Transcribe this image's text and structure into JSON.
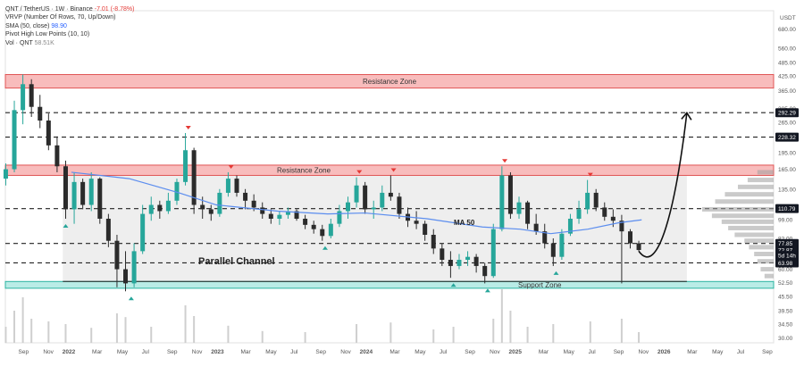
{
  "legend": {
    "symbol_line": "QNT / TetherUS · 1W · Binance",
    "change": "-7.01 (-8.78%)",
    "vrvp": "VRVP (Number Of Rows, 70, Up/Down)",
    "sma_label": "SMA (50, close)",
    "sma_value": "98.90",
    "pivot": "Pivot High Low Points (10, 10)",
    "vol_label": "Vol · QNT",
    "vol_value": "58.51K"
  },
  "chart_data": {
    "type": "candlestick",
    "y_scale": "log",
    "currency": "USDT",
    "ylim": [
      28.5,
      820
    ],
    "y_ticks": [
      "680.00",
      "560.00",
      "485.00",
      "425.00",
      "365.00",
      "305.00",
      "265.00",
      "228.32",
      "195.00",
      "165.00",
      "135.00",
      "110.79",
      "99.00",
      "82.00",
      "77.85",
      "72.87",
      "63.98",
      "60.00",
      "52.50",
      "45.50",
      "39.50",
      "34.50",
      "30.00"
    ],
    "price_badges": [
      {
        "label": "292.29",
        "value": 292.29
      },
      {
        "label": "228.32",
        "value": 228.32
      },
      {
        "label": "110.79",
        "value": 110.79
      },
      {
        "label": "77.85",
        "value": 77.85
      },
      {
        "label": "72.87",
        "value": 72.87
      },
      {
        "label": "5d 14h",
        "value": 69.0
      },
      {
        "label": "63.98",
        "value": 63.98
      }
    ],
    "x_ticks": [
      "Sep",
      "Nov",
      "2022",
      "Mar",
      "May",
      "Jul",
      "Sep",
      "Nov",
      "2023",
      "Mar",
      "May",
      "Jul",
      "Sep",
      "Nov",
      "2024",
      "Mar",
      "May",
      "Jul",
      "Sep",
      "Nov",
      "2025",
      "Mar",
      "May",
      "Jul",
      "Sep",
      "Nov",
      "2026",
      "Mar",
      "May",
      "Jul",
      "Sep"
    ],
    "x_range": [
      "2021-08-01",
      "2026-09-30"
    ],
    "dashed_levels": [
      292.29,
      228.32,
      110.79,
      77.85,
      63.98
    ],
    "resistance_top": {
      "label": "Resistance Zone",
      "low": 375,
      "high": 430
    },
    "resistance_mid": {
      "label": "Resistance Zone",
      "low": 155,
      "high": 172
    },
    "support_zone": {
      "label": "Support Zone",
      "low": 49.5,
      "high": 53
    },
    "channel": {
      "label": "Parallel Channel",
      "low": 53,
      "high": 165,
      "start": "2021-12-20",
      "end": "2026-03-01"
    },
    "ma_label": "MA 50",
    "candles": [
      {
        "date": "2021-08-02",
        "o": 150,
        "h": 175,
        "l": 140,
        "c": 165
      },
      {
        "date": "2021-08-23",
        "o": 165,
        "h": 330,
        "l": 160,
        "c": 300
      },
      {
        "date": "2021-09-13",
        "o": 300,
        "h": 430,
        "l": 260,
        "c": 390
      },
      {
        "date": "2021-10-04",
        "o": 390,
        "h": 410,
        "l": 280,
        "c": 310
      },
      {
        "date": "2021-10-25",
        "o": 310,
        "h": 350,
        "l": 250,
        "c": 270
      },
      {
        "date": "2021-11-15",
        "o": 270,
        "h": 290,
        "l": 200,
        "c": 210
      },
      {
        "date": "2021-12-06",
        "o": 210,
        "h": 230,
        "l": 160,
        "c": 170
      },
      {
        "date": "2021-12-27",
        "o": 170,
        "h": 180,
        "l": 100,
        "c": 110
      },
      {
        "date": "2022-01-17",
        "o": 110,
        "h": 160,
        "l": 95,
        "c": 145
      },
      {
        "date": "2022-02-07",
        "o": 145,
        "h": 150,
        "l": 110,
        "c": 115
      },
      {
        "date": "2022-02-28",
        "o": 115,
        "h": 160,
        "l": 108,
        "c": 150
      },
      {
        "date": "2022-03-21",
        "o": 150,
        "h": 152,
        "l": 95,
        "c": 100
      },
      {
        "date": "2022-04-11",
        "o": 100,
        "h": 105,
        "l": 75,
        "c": 80
      },
      {
        "date": "2022-05-02",
        "o": 80,
        "h": 85,
        "l": 50,
        "c": 60
      },
      {
        "date": "2022-05-23",
        "o": 60,
        "h": 72,
        "l": 48,
        "c": 52
      },
      {
        "date": "2022-06-13",
        "o": 52,
        "h": 78,
        "l": 50,
        "c": 72
      },
      {
        "date": "2022-07-04",
        "o": 72,
        "h": 115,
        "l": 70,
        "c": 105
      },
      {
        "date": "2022-07-25",
        "o": 105,
        "h": 125,
        "l": 98,
        "c": 115
      },
      {
        "date": "2022-08-15",
        "o": 115,
        "h": 120,
        "l": 100,
        "c": 108
      },
      {
        "date": "2022-09-05",
        "o": 108,
        "h": 130,
        "l": 105,
        "c": 120
      },
      {
        "date": "2022-09-26",
        "o": 120,
        "h": 150,
        "l": 115,
        "c": 145
      },
      {
        "date": "2022-10-17",
        "o": 145,
        "h": 238,
        "l": 140,
        "c": 200
      },
      {
        "date": "2022-11-07",
        "o": 200,
        "h": 205,
        "l": 105,
        "c": 115
      },
      {
        "date": "2022-11-28",
        "o": 115,
        "h": 125,
        "l": 100,
        "c": 110
      },
      {
        "date": "2022-12-19",
        "o": 110,
        "h": 115,
        "l": 98,
        "c": 105
      },
      {
        "date": "2023-01-09",
        "o": 105,
        "h": 135,
        "l": 102,
        "c": 130
      },
      {
        "date": "2023-01-30",
        "o": 130,
        "h": 160,
        "l": 125,
        "c": 150
      },
      {
        "date": "2023-02-20",
        "o": 150,
        "h": 155,
        "l": 125,
        "c": 130
      },
      {
        "date": "2023-03-13",
        "o": 130,
        "h": 135,
        "l": 110,
        "c": 120
      },
      {
        "date": "2023-04-03",
        "o": 120,
        "h": 128,
        "l": 108,
        "c": 112
      },
      {
        "date": "2023-04-24",
        "o": 112,
        "h": 118,
        "l": 100,
        "c": 105
      },
      {
        "date": "2023-05-15",
        "o": 105,
        "h": 110,
        "l": 95,
        "c": 100
      },
      {
        "date": "2023-06-05",
        "o": 100,
        "h": 108,
        "l": 94,
        "c": 104
      },
      {
        "date": "2023-06-26",
        "o": 104,
        "h": 112,
        "l": 100,
        "c": 108
      },
      {
        "date": "2023-07-17",
        "o": 108,
        "h": 110,
        "l": 98,
        "c": 100
      },
      {
        "date": "2023-08-07",
        "o": 100,
        "h": 104,
        "l": 90,
        "c": 94
      },
      {
        "date": "2023-08-28",
        "o": 94,
        "h": 98,
        "l": 86,
        "c": 90
      },
      {
        "date": "2023-09-18",
        "o": 90,
        "h": 94,
        "l": 80,
        "c": 84
      },
      {
        "date": "2023-10-09",
        "o": 84,
        "h": 100,
        "l": 82,
        "c": 95
      },
      {
        "date": "2023-10-30",
        "o": 95,
        "h": 115,
        "l": 92,
        "c": 108
      },
      {
        "date": "2023-11-20",
        "o": 108,
        "h": 125,
        "l": 100,
        "c": 118
      },
      {
        "date": "2023-12-11",
        "o": 118,
        "h": 152,
        "l": 112,
        "c": 140
      },
      {
        "date": "2024-01-01",
        "o": 140,
        "h": 145,
        "l": 105,
        "c": 110
      },
      {
        "date": "2024-01-22",
        "o": 110,
        "h": 120,
        "l": 100,
        "c": 112
      },
      {
        "date": "2024-02-12",
        "o": 112,
        "h": 140,
        "l": 108,
        "c": 130
      },
      {
        "date": "2024-03-04",
        "o": 130,
        "h": 155,
        "l": 120,
        "c": 125
      },
      {
        "date": "2024-03-25",
        "o": 125,
        "h": 130,
        "l": 100,
        "c": 105
      },
      {
        "date": "2024-04-15",
        "o": 105,
        "h": 112,
        "l": 92,
        "c": 98
      },
      {
        "date": "2024-05-06",
        "o": 98,
        "h": 108,
        "l": 90,
        "c": 95
      },
      {
        "date": "2024-05-27",
        "o": 95,
        "h": 98,
        "l": 80,
        "c": 85
      },
      {
        "date": "2024-06-17",
        "o": 85,
        "h": 90,
        "l": 70,
        "c": 74
      },
      {
        "date": "2024-07-08",
        "o": 74,
        "h": 78,
        "l": 62,
        "c": 66
      },
      {
        "date": "2024-07-29",
        "o": 66,
        "h": 72,
        "l": 55,
        "c": 62
      },
      {
        "date": "2024-08-19",
        "o": 62,
        "h": 70,
        "l": 60,
        "c": 66
      },
      {
        "date": "2024-09-09",
        "o": 66,
        "h": 72,
        "l": 62,
        "c": 68
      },
      {
        "date": "2024-09-30",
        "o": 68,
        "h": 70,
        "l": 58,
        "c": 62
      },
      {
        "date": "2024-10-21",
        "o": 62,
        "h": 64,
        "l": 52,
        "c": 56
      },
      {
        "date": "2024-11-11",
        "o": 56,
        "h": 95,
        "l": 55,
        "c": 90
      },
      {
        "date": "2024-12-02",
        "o": 90,
        "h": 170,
        "l": 88,
        "c": 155
      },
      {
        "date": "2024-12-23",
        "o": 155,
        "h": 160,
        "l": 100,
        "c": 105
      },
      {
        "date": "2025-01-13",
        "o": 105,
        "h": 125,
        "l": 100,
        "c": 118
      },
      {
        "date": "2025-02-03",
        "o": 118,
        "h": 120,
        "l": 90,
        "c": 95
      },
      {
        "date": "2025-02-24",
        "o": 95,
        "h": 105,
        "l": 85,
        "c": 88
      },
      {
        "date": "2025-03-17",
        "o": 88,
        "h": 95,
        "l": 74,
        "c": 78
      },
      {
        "date": "2025-04-07",
        "o": 78,
        "h": 82,
        "l": 62,
        "c": 68
      },
      {
        "date": "2025-04-28",
        "o": 68,
        "h": 90,
        "l": 66,
        "c": 86
      },
      {
        "date": "2025-05-19",
        "o": 86,
        "h": 105,
        "l": 84,
        "c": 100
      },
      {
        "date": "2025-06-09",
        "o": 100,
        "h": 120,
        "l": 95,
        "c": 110
      },
      {
        "date": "2025-06-30",
        "o": 110,
        "h": 148,
        "l": 105,
        "c": 130
      },
      {
        "date": "2025-07-21",
        "o": 130,
        "h": 135,
        "l": 108,
        "c": 112
      },
      {
        "date": "2025-08-11",
        "o": 112,
        "h": 118,
        "l": 98,
        "c": 102
      },
      {
        "date": "2025-09-01",
        "o": 102,
        "h": 110,
        "l": 92,
        "c": 98
      },
      {
        "date": "2025-09-22",
        "o": 98,
        "h": 104,
        "l": 52,
        "c": 88
      },
      {
        "date": "2025-10-13",
        "o": 88,
        "h": 90,
        "l": 74,
        "c": 78
      },
      {
        "date": "2025-11-03",
        "o": 78,
        "h": 80,
        "l": 72,
        "c": 72.87
      }
    ],
    "sma50": [
      {
        "date": "2022-01-10",
        "v": 160
      },
      {
        "date": "2022-06-01",
        "v": 150
      },
      {
        "date": "2022-10-01",
        "v": 130
      },
      {
        "date": "2023-01-01",
        "v": 115
      },
      {
        "date": "2023-06-01",
        "v": 108
      },
      {
        "date": "2023-10-01",
        "v": 105
      },
      {
        "date": "2024-01-01",
        "v": 106
      },
      {
        "date": "2024-06-01",
        "v": 100
      },
      {
        "date": "2024-10-15",
        "v": 92
      },
      {
        "date": "2025-01-15",
        "v": 90
      },
      {
        "date": "2025-04-01",
        "v": 86
      },
      {
        "date": "2025-07-01",
        "v": 90
      },
      {
        "date": "2025-09-15",
        "v": 96
      },
      {
        "date": "2025-11-10",
        "v": 98.9
      }
    ],
    "pivot_highs": [
      {
        "date": "2022-10-24",
        "v": 238
      },
      {
        "date": "2023-02-06",
        "v": 160
      },
      {
        "date": "2023-12-18",
        "v": 152
      },
      {
        "date": "2024-03-11",
        "v": 155
      },
      {
        "date": "2024-12-09",
        "v": 170
      },
      {
        "date": "2025-07-07",
        "v": 148
      }
    ],
    "pivot_lows": [
      {
        "date": "2021-12-27",
        "v": 100
      },
      {
        "date": "2022-06-06",
        "v": 48
      },
      {
        "date": "2023-09-25",
        "v": 80
      },
      {
        "date": "2024-08-05",
        "v": 55
      },
      {
        "date": "2024-10-28",
        "v": 52
      },
      {
        "date": "2025-04-14",
        "v": 62
      }
    ],
    "projection": [
      {
        "date": "2025-11-03",
        "v": 72
      },
      {
        "date": "2025-12-20",
        "v": 66
      },
      {
        "date": "2026-02-01",
        "v": 110
      },
      {
        "date": "2026-03-01",
        "v": 292
      }
    ],
    "volume": [
      {
        "date": "2021-08-02",
        "v": 30
      },
      {
        "date": "2021-08-23",
        "v": 60
      },
      {
        "date": "2021-09-13",
        "v": 85
      },
      {
        "date": "2021-10-04",
        "v": 45
      },
      {
        "date": "2021-11-15",
        "v": 40
      },
      {
        "date": "2021-12-27",
        "v": 35
      },
      {
        "date": "2022-02-28",
        "v": 28
      },
      {
        "date": "2022-05-02",
        "v": 55
      },
      {
        "date": "2022-05-23",
        "v": 48
      },
      {
        "date": "2022-07-25",
        "v": 30
      },
      {
        "date": "2022-10-17",
        "v": 70
      },
      {
        "date": "2022-11-07",
        "v": 50
      },
      {
        "date": "2023-01-30",
        "v": 32
      },
      {
        "date": "2023-04-24",
        "v": 22
      },
      {
        "date": "2023-08-07",
        "v": 20
      },
      {
        "date": "2023-12-11",
        "v": 35
      },
      {
        "date": "2024-03-04",
        "v": 38
      },
      {
        "date": "2024-06-17",
        "v": 25
      },
      {
        "date": "2024-08-05",
        "v": 30
      },
      {
        "date": "2024-11-11",
        "v": 45
      },
      {
        "date": "2024-12-02",
        "v": 100
      },
      {
        "date": "2024-12-23",
        "v": 60
      },
      {
        "date": "2025-02-03",
        "v": 30
      },
      {
        "date": "2025-04-07",
        "v": 35
      },
      {
        "date": "2025-07-07",
        "v": 40
      },
      {
        "date": "2025-09-22",
        "v": 45
      },
      {
        "date": "2025-11-03",
        "v": 20
      }
    ],
    "volume_profile": [
      {
        "price": 160,
        "v": 25
      },
      {
        "price": 148,
        "v": 40
      },
      {
        "price": 138,
        "v": 55
      },
      {
        "price": 128,
        "v": 75
      },
      {
        "price": 119,
        "v": 90
      },
      {
        "price": 110,
        "v": 110
      },
      {
        "price": 103,
        "v": 95
      },
      {
        "price": 97,
        "v": 80
      },
      {
        "price": 91,
        "v": 70
      },
      {
        "price": 85,
        "v": 60
      },
      {
        "price": 80,
        "v": 45
      },
      {
        "price": 75,
        "v": 38
      },
      {
        "price": 70,
        "v": 30
      },
      {
        "price": 65,
        "v": 25
      },
      {
        "price": 60,
        "v": 20
      },
      {
        "price": 56,
        "v": 14
      }
    ],
    "colors": {
      "up": "#26a69a",
      "down": "#2b2b2b",
      "sma": "#5b8def",
      "resistance": "#f8bcbc",
      "resistance_line": "#e05555",
      "support": "#b9ece6",
      "support_line": "#2bb3a0",
      "channel": "#e8e8e8",
      "pivot_high": "#e53935",
      "pivot_low": "#26a69a"
    }
  }
}
